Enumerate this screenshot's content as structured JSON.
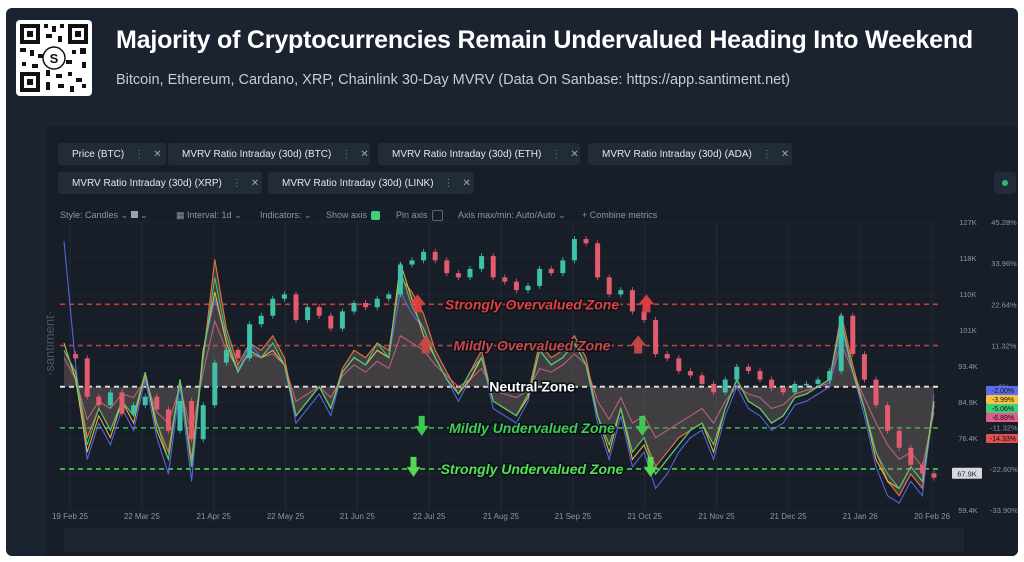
{
  "header": {
    "title": "Majority of Cryptocurrencies Remain Undervalued Heading Into Weekend",
    "subtitle": "Bitcoin, Ethereum, Cardano, XRP, Chainlink 30-Day MVRV (Data On Sanbase: https://app.santiment.net)"
  },
  "metrics": [
    {
      "label": "Price (BTC)",
      "color": "#9aa0a8"
    },
    {
      "label": "MVRV Ratio Intraday (30d) (BTC)",
      "color": "#e35b8c"
    },
    {
      "label": "MVRV Ratio Intraday (30d) (ETH)",
      "color": "#ff7a45"
    },
    {
      "label": "MVRV Ratio Intraday (30d) (ADA)",
      "color": "#5b6cf0"
    },
    {
      "label": "MVRV Ratio Intraday (30d) (XRP)",
      "color": "#f5c542"
    },
    {
      "label": "MVRV Ratio Intraday (30d) (LINK)",
      "color": "#3fce7a"
    }
  ],
  "toolbar": {
    "style": "Style: Candles",
    "interval": "Interval: 1d",
    "indicators": "Indicators:",
    "show_axis": "Show axis",
    "pin_axis": "Pin axis",
    "axis_maxmin": "Axis max/min: Auto/Auto",
    "combine": "+ Combine metrics"
  },
  "watermark": "·santiment·",
  "chart_data": {
    "type": "line",
    "x_ticks": [
      "19 Feb 25",
      "22 Mar 25",
      "21 Apr 25",
      "22 May 25",
      "21 Jun 25",
      "22 Jul 25",
      "21 Aug 25",
      "21 Sep 25",
      "21 Oct 25",
      "21 Nov 25",
      "21 Dec 25",
      "21 Jan 26",
      "20 Feb 26"
    ],
    "price_axis": {
      "ticks": [
        "127K",
        "118K",
        "110K",
        "101K",
        "93.4K",
        "84.9K",
        "76.4K",
        "67.9K",
        "59.4K"
      ],
      "ylim": [
        59.4,
        127
      ],
      "current": "67.9K"
    },
    "mvrv_axis": {
      "ticks": [
        "45.28%",
        "33.96%",
        "22.64%",
        "11.32%",
        "0%",
        "-11.32%",
        "-22.60%",
        "-33.90%"
      ],
      "ylim": [
        -33.9,
        45.28
      ]
    },
    "current_values": [
      {
        "label": "-2.00%",
        "color": "#5b6cf0"
      },
      {
        "label": "-3.99%",
        "color": "#f5c542"
      },
      {
        "label": "-5.06%",
        "color": "#3fce7a"
      },
      {
        "label": "-6.89%",
        "color": "#e35b8c"
      },
      {
        "label": "-14.33%",
        "color": "#e05050"
      }
    ],
    "zones": [
      {
        "label": "Strongly Overvalued Zone",
        "mvrv": 22.64,
        "color": "#e04040"
      },
      {
        "label": "Mildly Overvalued Zone",
        "mvrv": 11.32,
        "color": "#c94848"
      },
      {
        "label": "Neutral Zone",
        "mvrv": 0,
        "color": "#ffffff"
      },
      {
        "label": "Mildly Undervalued Zone",
        "mvrv": -11.32,
        "color": "#3fce55"
      },
      {
        "label": "Strongly Undervalued Zone",
        "mvrv": -22.6,
        "color": "#55e055"
      }
    ],
    "price_series": {
      "name": "Price (BTC)",
      "values": [
        96,
        95,
        86,
        84,
        87,
        82,
        84,
        86,
        83,
        78,
        85,
        76,
        84,
        94,
        97,
        95,
        103,
        105,
        109,
        110,
        104,
        107,
        105,
        102,
        106,
        108,
        107,
        109,
        110,
        117,
        118,
        120,
        118,
        115,
        114,
        116,
        119,
        114,
        113,
        111,
        112,
        116,
        115,
        118,
        123,
        122,
        114,
        110,
        111,
        106,
        104,
        96,
        95,
        92,
        91,
        89,
        87,
        90,
        93,
        92,
        90,
        88,
        87,
        89,
        89,
        90,
        92,
        105,
        96,
        90,
        84,
        78,
        74,
        70,
        68,
        67
      ]
    },
    "mvrv_series": [
      {
        "name": "MVRV Ratio Intraday (30d) (BTC)",
        "color": "#e35b8c",
        "values": [
          8,
          2,
          -9,
          -4,
          -6,
          -2,
          -3,
          2,
          -7,
          -10,
          0,
          -13,
          4,
          18,
          10,
          5,
          9,
          8,
          9,
          6,
          -4,
          -2,
          0,
          -3,
          3,
          6,
          4,
          7,
          5,
          14,
          12,
          10,
          6,
          3,
          0,
          2,
          5,
          -1,
          -2,
          -3,
          -1,
          5,
          4,
          6,
          9,
          6,
          -4,
          -9,
          -3,
          -10,
          -8,
          -14,
          -12,
          -10,
          -8,
          -6,
          -10,
          -4,
          0,
          -2,
          -3,
          -6,
          -5,
          -2,
          -1,
          0,
          1,
          12,
          4,
          -3,
          -10,
          -16,
          -20,
          -18,
          -22,
          -7
        ]
      },
      {
        "name": "MVRV Ratio Intraday (30d) (ETH)",
        "color": "#ff7a45",
        "values": [
          10,
          4,
          -14,
          -6,
          -12,
          -4,
          -8,
          3,
          -10,
          -18,
          2,
          -20,
          8,
          35,
          16,
          6,
          12,
          10,
          14,
          8,
          -8,
          -4,
          0,
          -6,
          5,
          10,
          8,
          12,
          10,
          30,
          26,
          20,
          10,
          4,
          -2,
          4,
          10,
          -4,
          -6,
          -8,
          -2,
          12,
          8,
          10,
          14,
          8,
          -8,
          -16,
          -6,
          -18,
          -14,
          -22,
          -18,
          -14,
          -12,
          -10,
          -16,
          -6,
          2,
          -4,
          -6,
          -10,
          -8,
          -3,
          -2,
          0,
          2,
          20,
          6,
          -6,
          -18,
          -26,
          -30,
          -24,
          -28,
          -5
        ]
      },
      {
        "name": "MVRV Ratio Intraday (30d) (ADA)",
        "color": "#5b6cf0",
        "values": [
          40,
          6,
          -20,
          -10,
          -16,
          -6,
          -12,
          2,
          -14,
          -24,
          0,
          -26,
          10,
          24,
          14,
          4,
          12,
          8,
          12,
          6,
          -10,
          -6,
          -2,
          -8,
          4,
          8,
          6,
          10,
          8,
          26,
          20,
          16,
          8,
          2,
          -4,
          2,
          8,
          -6,
          -8,
          -10,
          -4,
          10,
          6,
          8,
          12,
          6,
          -10,
          -20,
          -8,
          -22,
          -18,
          -28,
          -24,
          -18,
          -14,
          -12,
          -20,
          -8,
          0,
          -6,
          -8,
          -12,
          -10,
          -5,
          -4,
          -2,
          0,
          16,
          4,
          -8,
          -22,
          -30,
          -32,
          -26,
          -30,
          -2
        ]
      },
      {
        "name": "MVRV Ratio Intraday (30d) (XRP)",
        "color": "#f5c542",
        "values": [
          12,
          2,
          -18,
          -8,
          -14,
          -4,
          -10,
          4,
          -12,
          -20,
          2,
          -22,
          10,
          26,
          12,
          4,
          10,
          8,
          10,
          6,
          -8,
          -4,
          0,
          -6,
          4,
          8,
          6,
          10,
          8,
          34,
          24,
          14,
          8,
          2,
          -2,
          2,
          8,
          -4,
          -6,
          -8,
          -3,
          10,
          6,
          8,
          12,
          6,
          -8,
          -18,
          -6,
          -20,
          -16,
          -24,
          -20,
          -16,
          -12,
          -10,
          -18,
          -6,
          2,
          -4,
          -6,
          -10,
          -8,
          -3,
          -2,
          0,
          2,
          18,
          4,
          -6,
          -20,
          -26,
          -28,
          -22,
          -26,
          -4
        ]
      },
      {
        "name": "MVRV Ratio Intraday (30d) (LINK)",
        "color": "#3fce7a",
        "values": [
          10,
          4,
          -16,
          -6,
          -12,
          -4,
          -8,
          4,
          -10,
          -20,
          2,
          -22,
          8,
          30,
          14,
          4,
          10,
          8,
          12,
          6,
          -8,
          -4,
          0,
          -6,
          4,
          8,
          6,
          12,
          8,
          32,
          22,
          16,
          8,
          2,
          -2,
          4,
          8,
          -4,
          -6,
          -8,
          -2,
          10,
          6,
          8,
          12,
          6,
          -8,
          -16,
          -6,
          -18,
          -14,
          -24,
          -20,
          -16,
          -12,
          -10,
          -16,
          -6,
          2,
          -4,
          -6,
          -10,
          -8,
          -3,
          -2,
          0,
          2,
          18,
          4,
          -6,
          -18,
          -24,
          -28,
          -22,
          -26,
          -5
        ]
      }
    ]
  }
}
